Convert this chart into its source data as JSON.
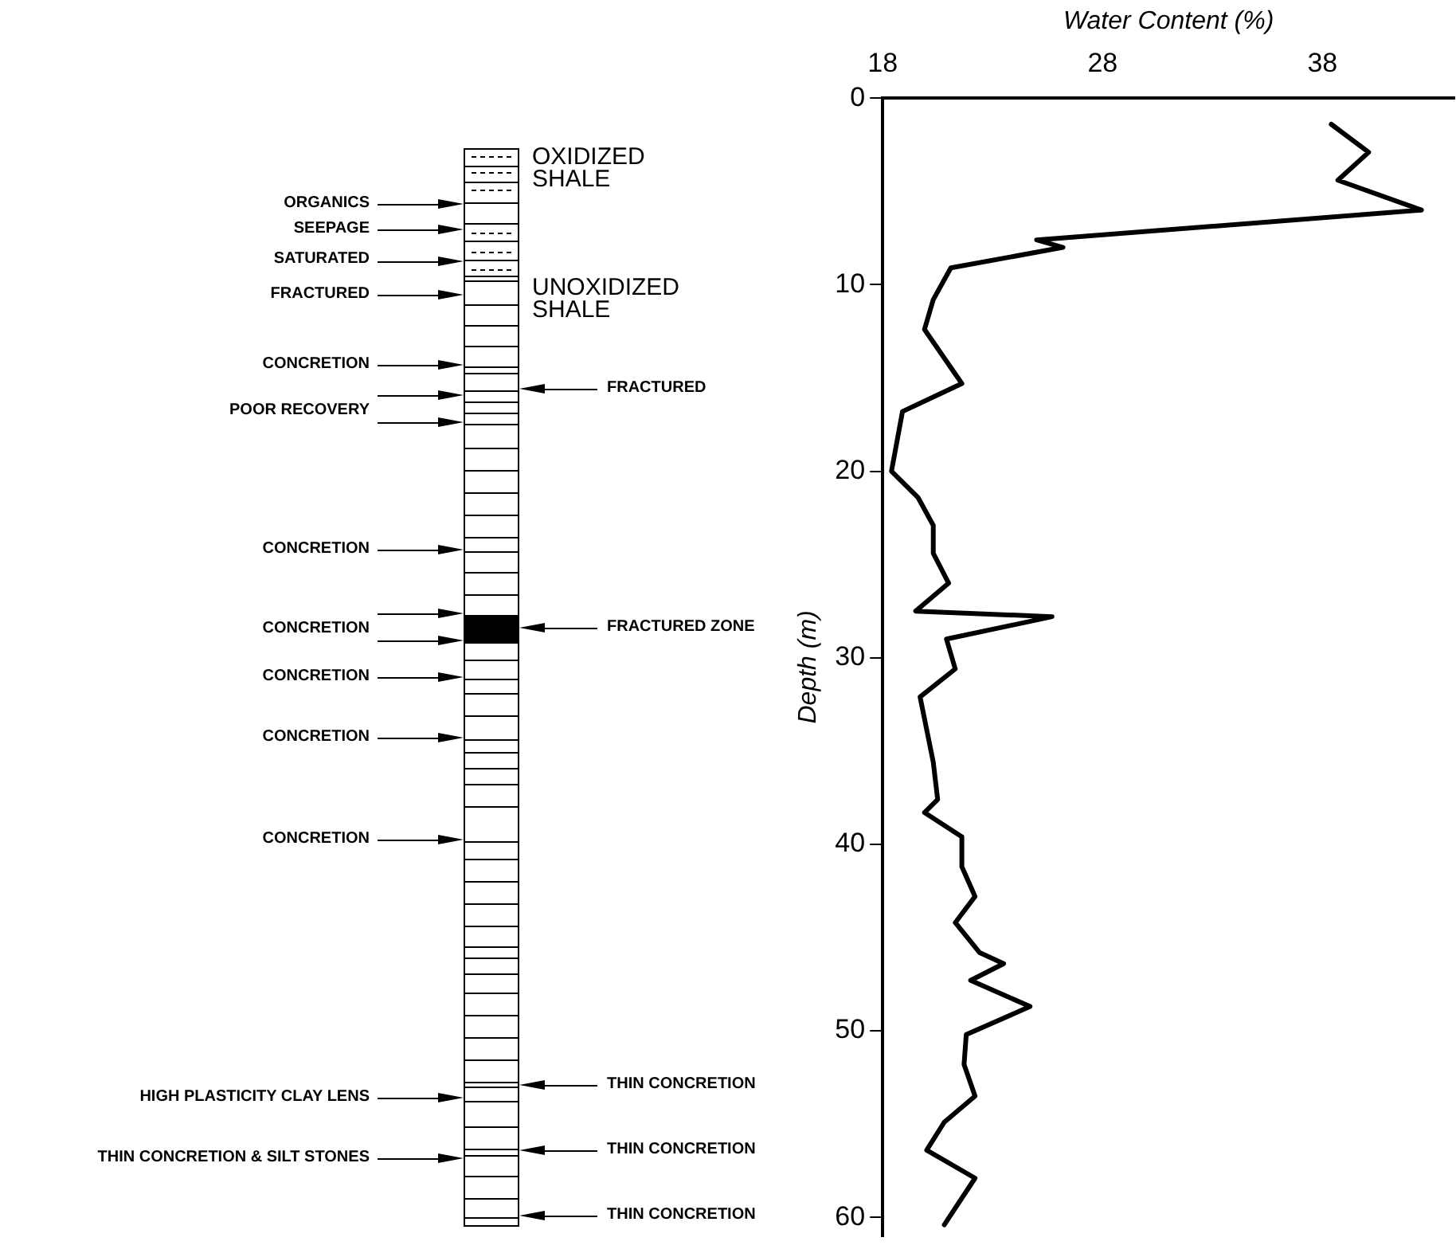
{
  "chart_data": {
    "type": "line",
    "xlabel": "Water Content (%)",
    "ylabel": "Depth (m)",
    "xlim": [
      18,
      44
    ],
    "xticks": [
      18,
      28,
      38
    ],
    "ylim": [
      61,
      0
    ],
    "yticks": [
      0,
      10,
      20,
      30,
      40,
      50,
      60
    ],
    "grid": false,
    "legend": false,
    "marker": "none",
    "line_style": "solid",
    "series": [
      {
        "color": "#000000",
        "x": [
          38.4,
          40.1,
          38.7,
          42.5,
          25.0,
          26.2,
          21.1,
          20.3,
          19.9,
          21.6,
          18.9,
          18.4,
          19.6,
          20.3,
          20.3,
          21.0,
          19.5,
          25.7,
          20.9,
          21.3,
          19.7,
          20.3,
          20.5,
          19.9,
          21.6,
          21.6,
          22.2,
          21.3,
          22.4,
          23.5,
          22.0,
          24.7,
          21.8,
          21.7,
          22.2,
          20.8,
          20.0,
          22.2,
          20.8
        ],
        "values": [
          1.4,
          2.9,
          4.4,
          6.0,
          7.6,
          8.0,
          9.1,
          10.8,
          12.4,
          15.3,
          16.8,
          20.0,
          21.4,
          22.9,
          24.4,
          26.0,
          27.5,
          27.8,
          29.0,
          30.6,
          32.1,
          35.6,
          37.6,
          38.3,
          39.6,
          41.2,
          42.8,
          44.2,
          45.8,
          46.4,
          47.3,
          48.7,
          50.2,
          51.8,
          53.5,
          54.9,
          56.4,
          57.9,
          60.4
        ]
      }
    ],
    "annotations": [
      "OXIDIZED SHALE",
      "ORGANICS",
      "SEEPAGE",
      "SATURATED",
      "FRACTURED",
      "UNOXIDIZED SHALE",
      "CONCRETION",
      "FRACTURED",
      "POOR RECOVERY",
      "CONCRETION",
      "CONCRETION",
      "FRACTURED ZONE",
      "CONCRETION",
      "CONCRETION",
      "CONCRETION",
      "HIGH PLASTICITY CLAY LENS",
      "THIN CONCRETION & SILT STONES",
      "THIN CONCRETION",
      "THIN CONCRETION",
      "THIN CONCRETION"
    ]
  }
}
